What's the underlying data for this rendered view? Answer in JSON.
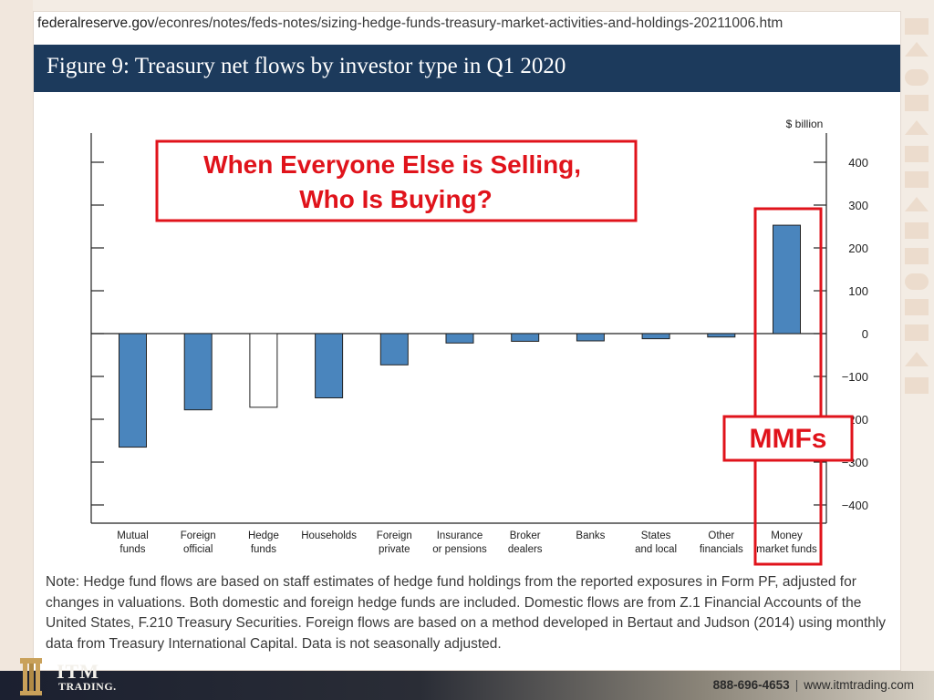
{
  "url": {
    "domain": "federalreserve.gov",
    "path": "/econres/notes/feds-notes/sizing-hedge-funds-treasury-market-activities-and-holdings-20211006.htm"
  },
  "figure_title": "Figure 9: Treasury net flows by investor type in Q1 2020",
  "callout_text": "When Everyone Else is Selling, Who Is Buying?",
  "callout_lines": [
    "When Everyone Else is Selling,",
    "Who Is Buying?"
  ],
  "mmf_label": "MMFs",
  "chart_data": {
    "type": "bar",
    "unit_label": "$ billion",
    "categories": [
      [
        "Mutual",
        "funds"
      ],
      [
        "Foreign",
        "official"
      ],
      [
        "Hedge",
        "funds"
      ],
      [
        "Households"
      ],
      [
        "Foreign",
        "private"
      ],
      [
        "Insurance",
        "or pensions"
      ],
      [
        "Broker",
        "dealers"
      ],
      [
        "Banks"
      ],
      [
        "States",
        "and local"
      ],
      [
        "Other",
        "financials"
      ],
      [
        "Money",
        "market funds"
      ]
    ],
    "values": [
      -265,
      -178,
      -172,
      -150,
      -73,
      -22,
      -18,
      -17,
      -12,
      -8,
      253
    ],
    "bar_fill": [
      "#4a85bd",
      "#4a85bd",
      "#ffffff",
      "#4a85bd",
      "#4a85bd",
      "#4a85bd",
      "#4a85bd",
      "#4a85bd",
      "#4a85bd",
      "#4a85bd",
      "#4a85bd"
    ],
    "ylim": [
      -440,
      460
    ],
    "yticks": [
      400,
      300,
      200,
      100,
      0,
      -100,
      -200,
      -300,
      -400
    ],
    "ytick_labels": [
      "400",
      "300",
      "200",
      "100",
      "0",
      "−100",
      "−200",
      "−300",
      "−400"
    ]
  },
  "note": "Note: Hedge fund flows are based on staff estimates of hedge fund holdings from the reported exposures in Form PF, adjusted for changes in valuations. Both domestic and foreign hedge funds are included. Domestic flows are from Z.1 Financial Accounts of the United States, F.210 Treasury Securities. Foreign flows are based on a method developed in Bertaut and Judson (2014) using monthly data from Treasury International Capital. Data is not seasonally adjusted.",
  "footer": {
    "logo_text": "ITM",
    "logo_subtext": "TRADING.",
    "phone": "888-696-4653",
    "website": "www.itmtrading.com"
  },
  "colors": {
    "header_bg": "#1c3a5c",
    "highlight_red": "#e0131b",
    "bar_blue": "#4a85bd"
  }
}
